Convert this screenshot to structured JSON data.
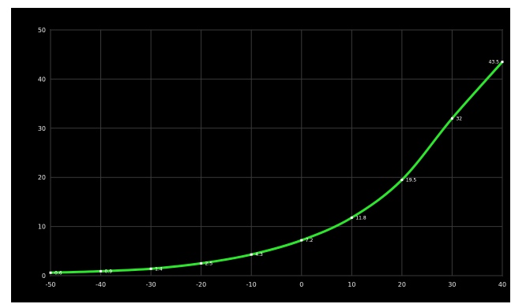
{
  "chart_data": {
    "type": "line",
    "title": "",
    "xlabel": "",
    "ylabel": "",
    "x": [
      -50,
      -40,
      -30,
      -20,
      -10,
      0,
      10,
      20,
      30,
      40
    ],
    "y": [
      0.6,
      0.9,
      1.4,
      2.5,
      4.3,
      7.2,
      11.8,
      19.5,
      32.0,
      43.5
    ],
    "xlim": [
      -50,
      40
    ],
    "ylim": [
      0,
      50
    ],
    "xticks": [
      -50,
      -40,
      -30,
      -20,
      -10,
      0,
      10,
      20,
      30,
      40
    ],
    "yticks": [
      0,
      10,
      20,
      30,
      40,
      50
    ],
    "line_color": "#2ee62e",
    "marker_color": "#ffffff",
    "grid": true,
    "background": "#000000"
  }
}
